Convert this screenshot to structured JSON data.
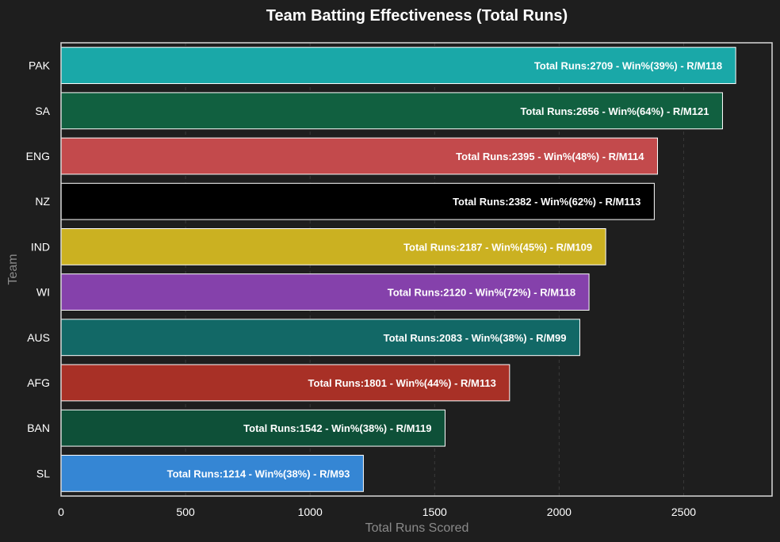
{
  "chart_data": {
    "type": "bar",
    "orientation": "horizontal",
    "title": "Team Batting Effectiveness (Total Runs)",
    "xlabel": "Total Runs Scored",
    "ylabel": "Team",
    "xlim": [
      0,
      2855
    ],
    "xticks": [
      0,
      500,
      1000,
      1500,
      2000,
      2500
    ],
    "grid": true,
    "categories": [
      "PAK",
      "SA",
      "ENG",
      "NZ",
      "IND",
      "WI",
      "AUS",
      "AFG",
      "BAN",
      "SL"
    ],
    "values": [
      2709,
      2656,
      2395,
      2382,
      2187,
      2120,
      2083,
      1801,
      1542,
      1214
    ],
    "win_pct": [
      39,
      64,
      48,
      62,
      45,
      72,
      38,
      44,
      38,
      38
    ],
    "runs_per_match": [
      118,
      121,
      114,
      113,
      109,
      118,
      99,
      113,
      119,
      93
    ],
    "labels": [
      "Total Runs:2709 - Win%(39%) - R/M118",
      "Total Runs:2656 - Win%(64%) - R/M121",
      "Total Runs:2395 - Win%(48%) - R/M114",
      "Total Runs:2382 - Win%(62%) - R/M113",
      "Total Runs:2187 - Win%(45%) - R/M109",
      "Total Runs:2120 - Win%(72%) - R/M118",
      "Total Runs:2083 - Win%(38%) - R/M99",
      "Total Runs:1801 - Win%(44%) - R/M113",
      "Total Runs:1542 - Win%(38%) - R/M119",
      "Total Runs:1214 - Win%(38%) - R/M93"
    ],
    "colors": [
      "#1aa8a8",
      "#116040",
      "#c34a4c",
      "#000000",
      "#cbb121",
      "#8541ab",
      "#126866",
      "#a83026",
      "#0e5038",
      "#3586d4"
    ]
  }
}
